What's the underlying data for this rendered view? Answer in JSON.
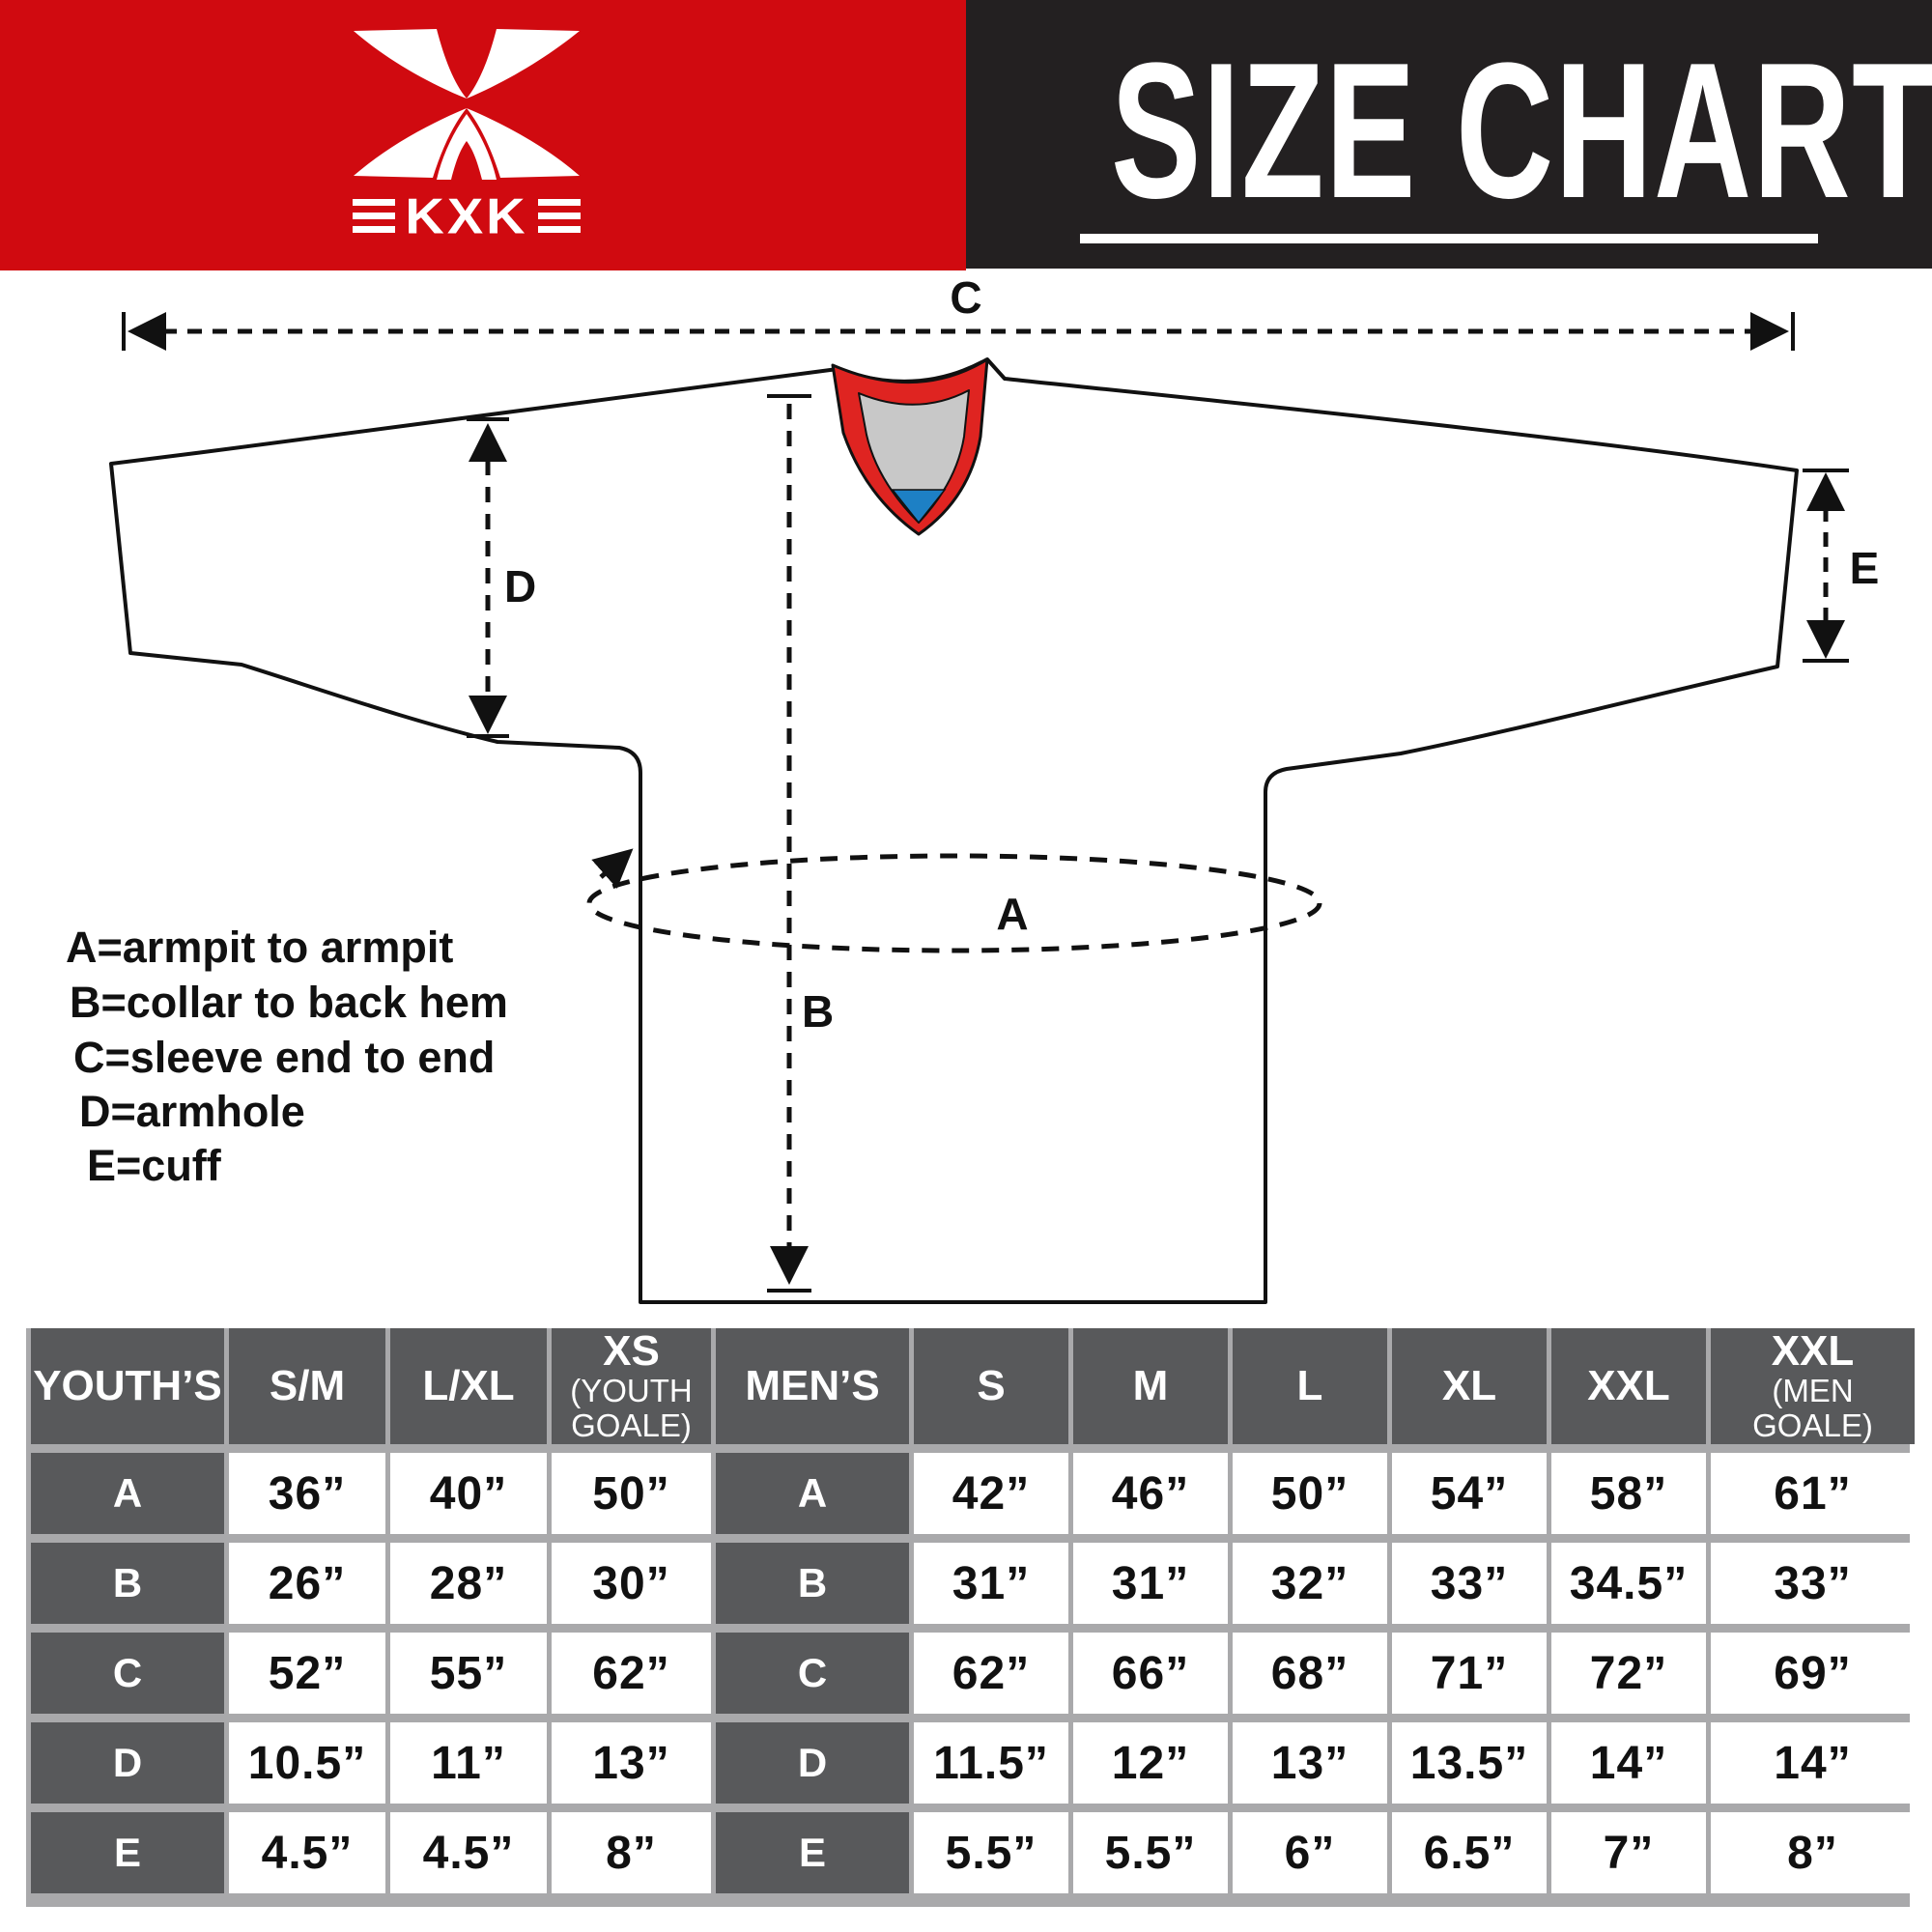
{
  "header": {
    "brand": {
      "text": "KXK",
      "bg": "#d00a10"
    },
    "title": {
      "text": "SIZE CHART",
      "bg": "#232021",
      "color": "#ffffff"
    }
  },
  "diagram": {
    "measure_labels": {
      "a": "A",
      "b": "B",
      "c": "C",
      "d": "D",
      "e": "E"
    },
    "legend": [
      "A=armpit to armpit",
      "B=collar to back hem",
      "C=sleeve end to end",
      "D=armhole",
      "E=cuff"
    ],
    "colors": {
      "outline": "#111111",
      "collar_red": "#df2421",
      "collar_gray": "#c8c8c8",
      "collar_blue": "#1d80c5"
    }
  },
  "table": {
    "youth_group": "YOUTH’S",
    "men_group": "MEN’S",
    "youth_columns": [
      "S/M",
      "L/XL"
    ],
    "youth_goalie": {
      "size": "XS",
      "note": "(YOUTH GOALE)"
    },
    "men_columns": [
      "S",
      "M",
      "L",
      "XL",
      "XXL"
    ],
    "men_goalie": {
      "size": "XXL",
      "note": "(MEN GOALE)"
    },
    "rows": [
      {
        "label": "A",
        "youth": [
          "36”",
          "40”",
          "50”"
        ],
        "men": [
          "42”",
          "46”",
          "50”",
          "54”",
          "58”",
          "61”"
        ]
      },
      {
        "label": "B",
        "youth": [
          "26”",
          "28”",
          "30”"
        ],
        "men": [
          "31”",
          "31”",
          "32”",
          "33”",
          "34.5”",
          "33”"
        ]
      },
      {
        "label": "C",
        "youth": [
          "52”",
          "55”",
          "62”"
        ],
        "men": [
          "62”",
          "66”",
          "68”",
          "71”",
          "72”",
          "69”"
        ]
      },
      {
        "label": "D",
        "youth": [
          "10.5”",
          "11”",
          "13”"
        ],
        "men": [
          "11.5”",
          "12”",
          "13”",
          "13.5”",
          "14”",
          "14”"
        ]
      },
      {
        "label": "E",
        "youth": [
          "4.5”",
          "4.5”",
          "8”"
        ],
        "men": [
          "5.5”",
          "5.5”",
          "6”",
          "6.5”",
          "7”",
          "8”"
        ]
      }
    ]
  },
  "chart_data": [
    {
      "type": "table",
      "title": "YOUTH’S",
      "columns": [
        "S/M",
        "L/XL",
        "XS (YOUTH GOALE)"
      ],
      "rows": [
        {
          "measure": "A",
          "values": [
            "36”",
            "40”",
            "50”"
          ]
        },
        {
          "measure": "B",
          "values": [
            "26”",
            "28”",
            "30”"
          ]
        },
        {
          "measure": "C",
          "values": [
            "52”",
            "55”",
            "62”"
          ]
        },
        {
          "measure": "D",
          "values": [
            "10.5”",
            "11”",
            "13”"
          ]
        },
        {
          "measure": "E",
          "values": [
            "4.5”",
            "4.5”",
            "8”"
          ]
        }
      ]
    },
    {
      "type": "table",
      "title": "MEN’S",
      "columns": [
        "S",
        "M",
        "L",
        "XL",
        "XXL",
        "XXL (MEN GOALE)"
      ],
      "rows": [
        {
          "measure": "A",
          "values": [
            "42”",
            "46”",
            "50”",
            "54”",
            "58”",
            "61”"
          ]
        },
        {
          "measure": "B",
          "values": [
            "31”",
            "31”",
            "32”",
            "33”",
            "34.5”",
            "33”"
          ]
        },
        {
          "measure": "C",
          "values": [
            "62”",
            "66”",
            "68”",
            "71”",
            "72”",
            "69”"
          ]
        },
        {
          "measure": "D",
          "values": [
            "11.5”",
            "12”",
            "13”",
            "13.5”",
            "14”",
            "14”"
          ]
        },
        {
          "measure": "E",
          "values": [
            "5.5”",
            "5.5”",
            "6”",
            "6.5”",
            "7”",
            "8”"
          ]
        }
      ]
    }
  ]
}
